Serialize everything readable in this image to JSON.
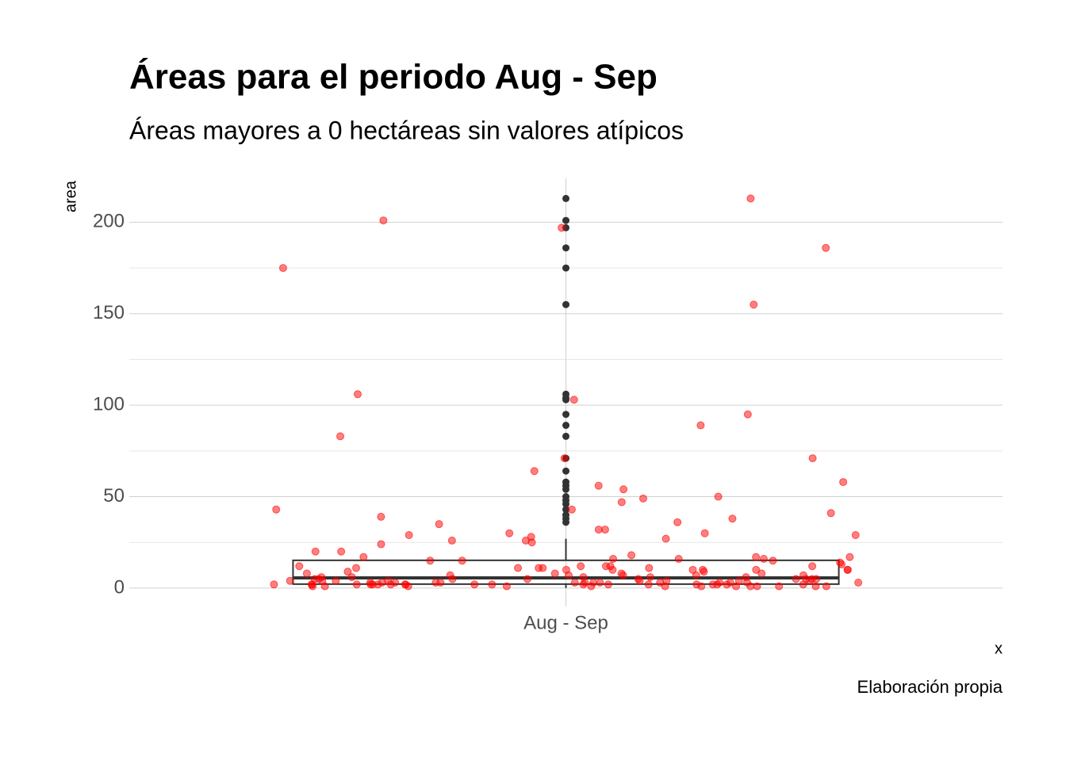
{
  "chart_data": {
    "type": "boxplot",
    "title": "Áreas para el periodo Aug - Sep",
    "subtitle": "Áreas mayores a 0 hectáreas sin valores atípicos",
    "y_label": "area",
    "x_label": "x",
    "caption": "Elaboración propia",
    "categories": [
      "Aug - Sep"
    ],
    "ylim": [
      -10,
      224
    ],
    "yticks": [
      0,
      50,
      100,
      150,
      200
    ],
    "yminorticks": [
      25,
      75,
      125,
      175
    ],
    "grid": true,
    "box": {
      "low": 0.1,
      "q1": 2.2,
      "median": 5.6,
      "q3": 15.2,
      "high": 27
    },
    "outliers": [
      213,
      201,
      197,
      186,
      175,
      155,
      106,
      104,
      103,
      95,
      89,
      83,
      71,
      64,
      58,
      56,
      54,
      50,
      48,
      46,
      43,
      40,
      38,
      36
    ],
    "point_color": "#ff0000",
    "outlier_color": "#333333",
    "points": [
      71,
      8,
      3,
      2,
      11,
      4,
      3,
      27,
      11,
      4,
      2,
      155,
      43,
      39,
      25,
      1,
      5,
      6,
      15,
      50,
      32,
      3,
      16,
      1,
      1,
      7,
      3,
      16,
      10,
      17,
      2,
      3,
      11,
      2,
      12,
      10,
      5,
      2,
      29,
      30,
      2,
      3,
      38,
      26,
      4,
      35,
      103,
      2,
      83,
      7,
      20,
      201,
      64,
      47,
      9,
      12,
      2,
      36,
      10,
      2,
      6,
      95,
      175,
      1,
      5,
      7,
      2,
      18,
      4,
      49,
      197,
      1,
      13,
      3,
      8,
      17,
      16,
      24,
      12,
      10,
      26,
      5,
      7,
      7,
      5,
      3,
      11,
      56,
      20,
      1,
      11,
      6,
      30,
      3,
      2,
      5,
      15,
      186,
      43,
      9,
      1,
      12,
      8,
      71,
      5,
      2,
      2,
      10,
      1,
      3,
      2,
      41,
      14,
      10,
      1,
      3,
      4,
      54,
      29,
      15,
      3,
      58,
      4,
      2,
      1,
      5,
      1,
      2,
      89,
      32,
      3,
      2,
      10,
      12,
      213,
      106,
      6,
      17,
      4,
      28,
      2,
      1,
      6,
      4,
      3,
      2,
      5,
      1,
      8,
      2
    ]
  }
}
